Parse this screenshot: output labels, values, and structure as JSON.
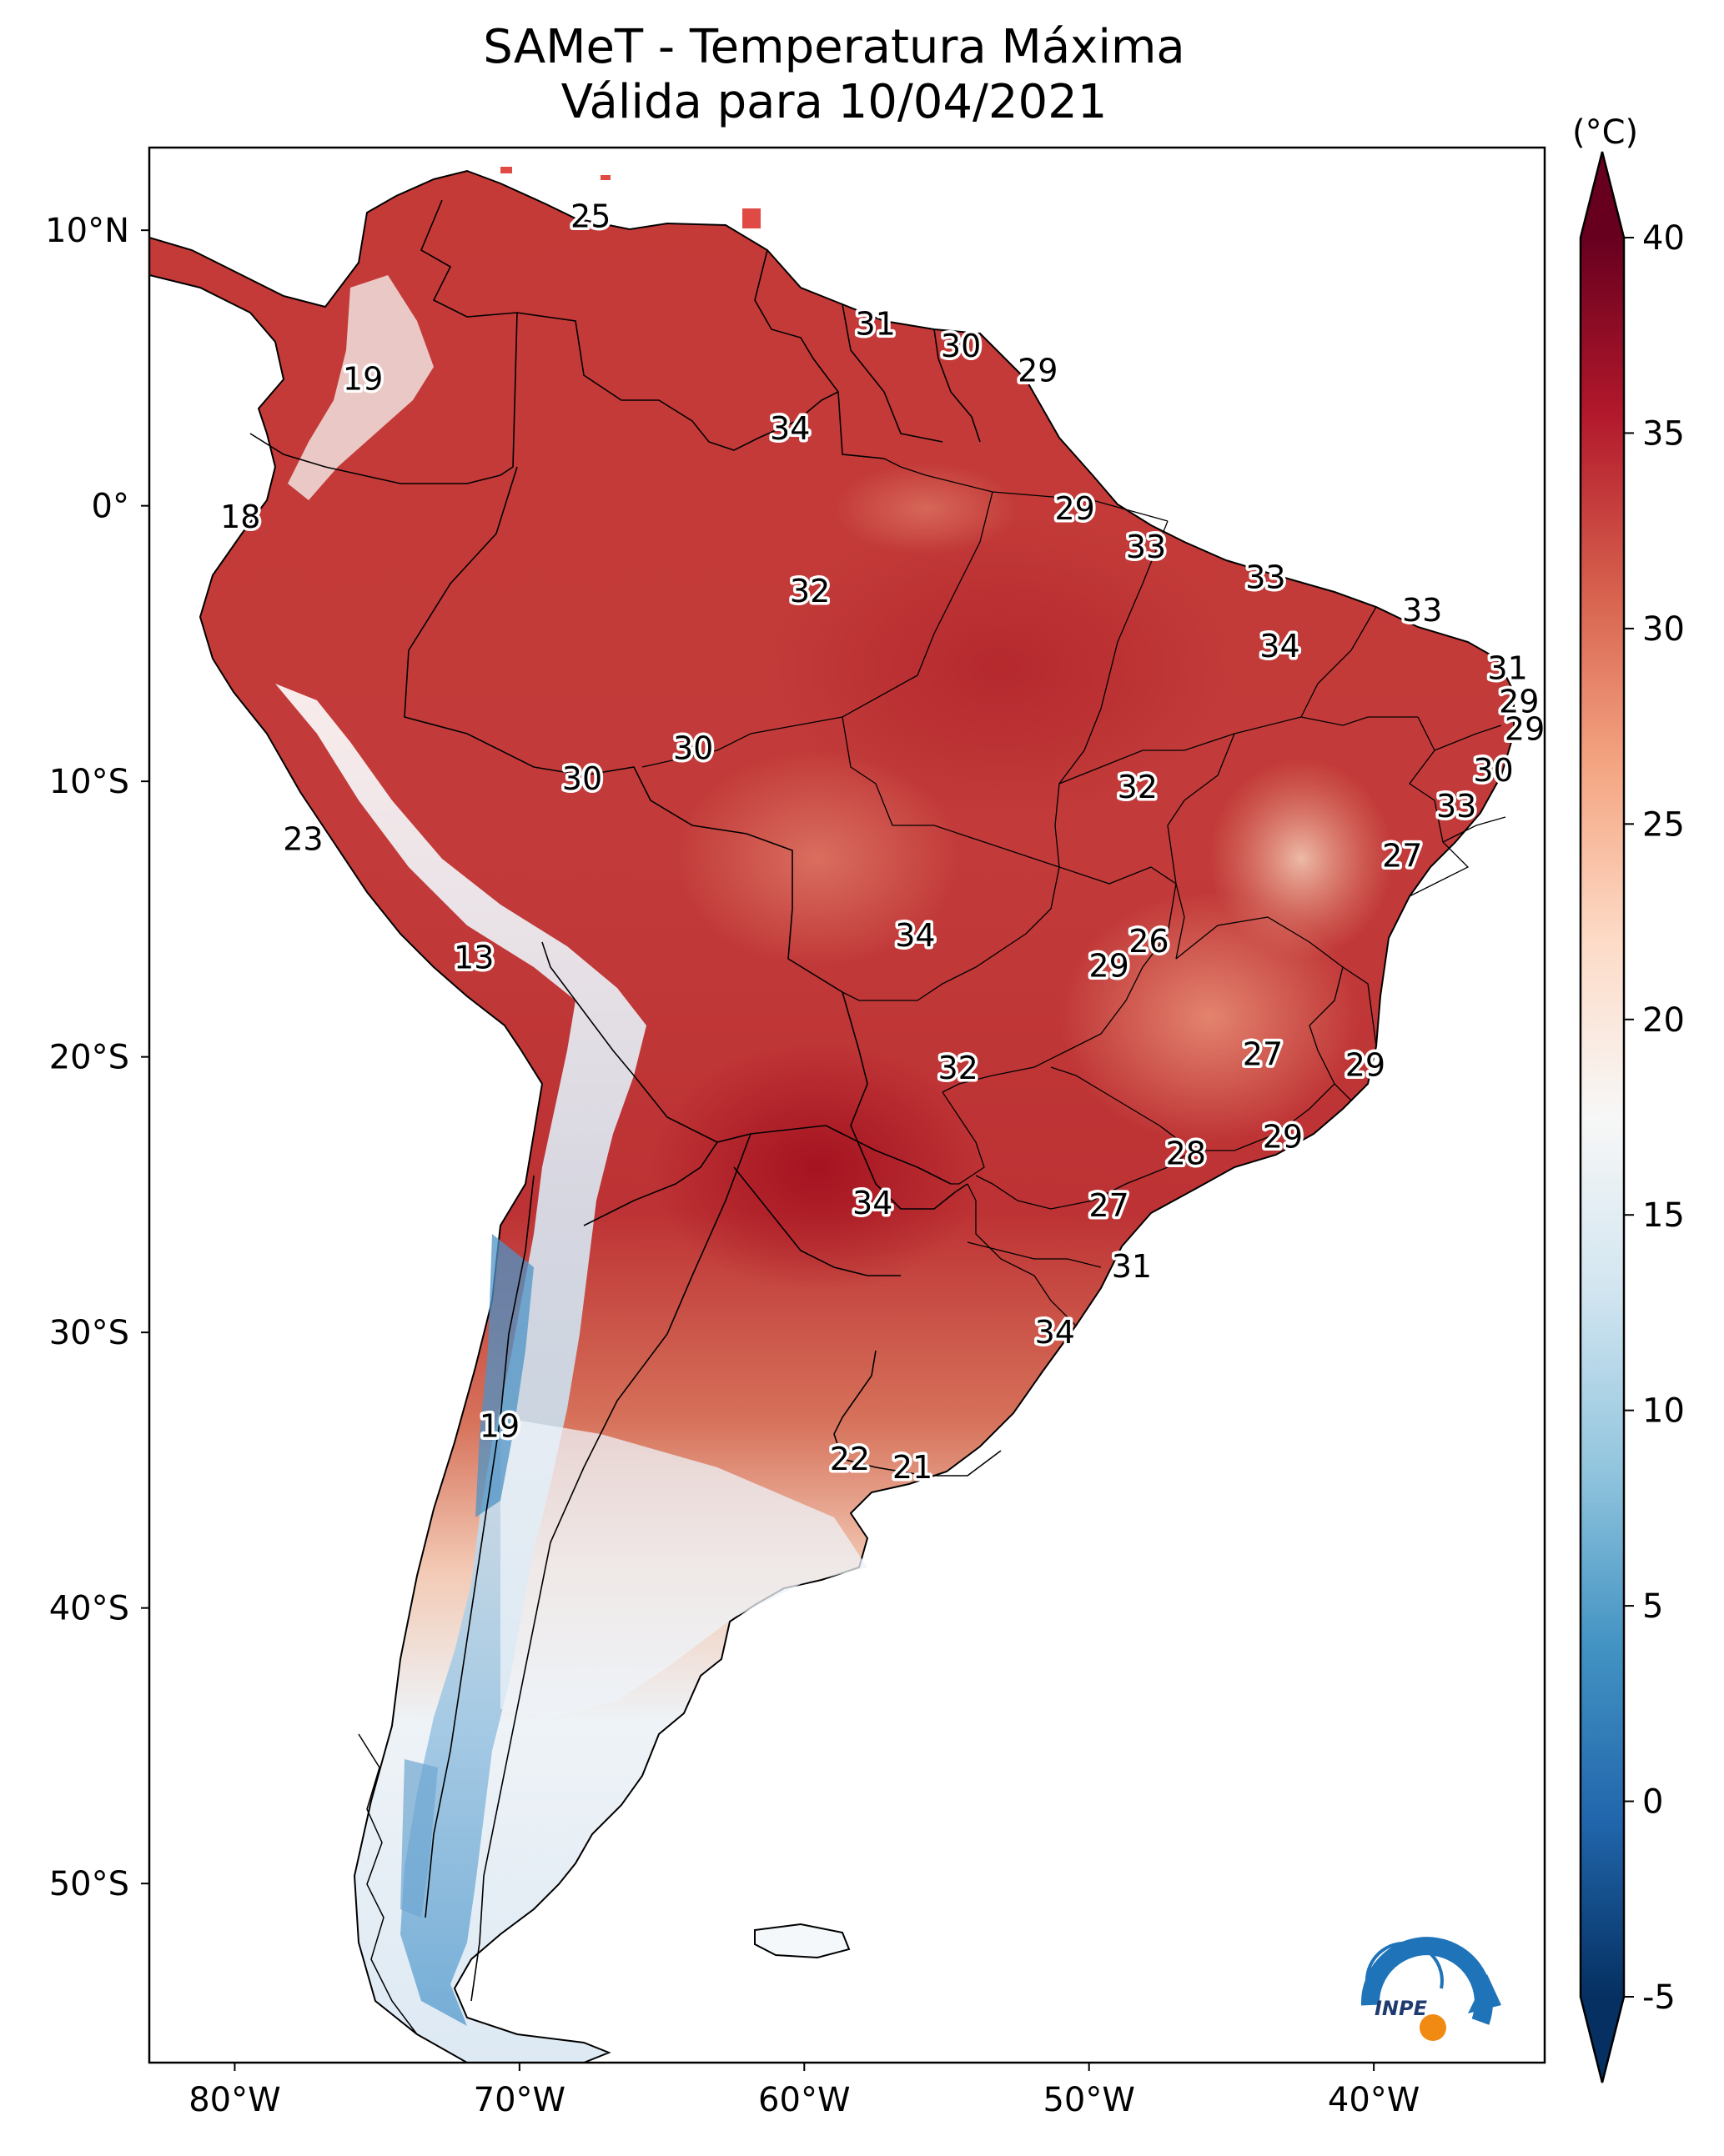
{
  "title": "SAMeT - Temperatura Máxima",
  "subtitle": "Válida para 10/04/2021",
  "logo_text": "INPE",
  "chart_data": {
    "type": "heatmap",
    "title": "SAMeT - Temperatura Máxima",
    "subtitle": "Válida para 10/04/2021",
    "lon_range": [
      -83,
      -34
    ],
    "lat_range": [
      -56.5,
      13
    ],
    "x_ticks": [
      {
        "lon": -80,
        "label": "80°W"
      },
      {
        "lon": -70,
        "label": "70°W"
      },
      {
        "lon": -60,
        "label": "60°W"
      },
      {
        "lon": -50,
        "label": "50°W"
      },
      {
        "lon": -40,
        "label": "40°W"
      }
    ],
    "y_ticks": [
      {
        "lat": 10,
        "label": "10°N"
      },
      {
        "lat": 0,
        "label": "0°"
      },
      {
        "lat": -10,
        "label": "10°S"
      },
      {
        "lat": -20,
        "label": "20°S"
      },
      {
        "lat": -30,
        "label": "30°S"
      },
      {
        "lat": -40,
        "label": "40°S"
      },
      {
        "lat": -50,
        "label": "50°S"
      }
    ],
    "colorbar": {
      "unit": "(°C)",
      "min": -5,
      "max": 40,
      "ticks": [
        {
          "value": 40,
          "label": "40"
        },
        {
          "value": 35,
          "label": "35"
        },
        {
          "value": 30,
          "label": "30"
        },
        {
          "value": 25,
          "label": "25"
        },
        {
          "value": 20,
          "label": "20"
        },
        {
          "value": 15,
          "label": "15"
        },
        {
          "value": 10,
          "label": "10"
        },
        {
          "value": 5,
          "label": "5"
        },
        {
          "value": 0,
          "label": "0"
        },
        {
          "value": -5,
          "label": "-5"
        }
      ],
      "colors": [
        "#053061",
        "#2166ac",
        "#4393c3",
        "#92c5de",
        "#d1e5f0",
        "#f7f7f7",
        "#fddbc7",
        "#f4a582",
        "#d6604d",
        "#b2182b",
        "#67001f"
      ]
    },
    "station_values": [
      {
        "lon": -67.5,
        "lat": 10.5,
        "text": "25"
      },
      {
        "lon": -75.5,
        "lat": 4.6,
        "text": "19"
      },
      {
        "lon": -57.5,
        "lat": 6.6,
        "text": "31"
      },
      {
        "lon": -54.5,
        "lat": 5.8,
        "text": "30"
      },
      {
        "lon": -51.8,
        "lat": 4.9,
        "text": "29"
      },
      {
        "lon": -60.5,
        "lat": 2.8,
        "text": "34"
      },
      {
        "lon": -79.8,
        "lat": -0.4,
        "text": "18"
      },
      {
        "lon": -50.5,
        "lat": -0.1,
        "text": "29"
      },
      {
        "lon": -48,
        "lat": -1.5,
        "text": "33"
      },
      {
        "lon": -43.8,
        "lat": -2.6,
        "text": "33"
      },
      {
        "lon": -38.3,
        "lat": -3.8,
        "text": "33"
      },
      {
        "lon": -59.8,
        "lat": -3.1,
        "text": "32"
      },
      {
        "lon": -43.3,
        "lat": -5.1,
        "text": "34"
      },
      {
        "lon": -35.3,
        "lat": -5.9,
        "text": "31"
      },
      {
        "lon": -34.9,
        "lat": -7.1,
        "text": "29"
      },
      {
        "lon": -34.7,
        "lat": -8.1,
        "text": "29"
      },
      {
        "lon": -35.8,
        "lat": -9.6,
        "text": "30"
      },
      {
        "lon": -37.1,
        "lat": -10.9,
        "text": "33"
      },
      {
        "lon": -67.8,
        "lat": -9.9,
        "text": "30"
      },
      {
        "lon": -63.9,
        "lat": -8.8,
        "text": "30"
      },
      {
        "lon": -48.3,
        "lat": -10.2,
        "text": "32"
      },
      {
        "lon": -39,
        "lat": -12.7,
        "text": "27"
      },
      {
        "lon": -77.6,
        "lat": -12.1,
        "text": "23"
      },
      {
        "lon": -71.6,
        "lat": -16.4,
        "text": "13"
      },
      {
        "lon": -56.1,
        "lat": -15.6,
        "text": "34"
      },
      {
        "lon": -47.9,
        "lat": -15.8,
        "text": "26"
      },
      {
        "lon": -49.3,
        "lat": -16.7,
        "text": "29"
      },
      {
        "lon": -43.9,
        "lat": -19.9,
        "text": "27"
      },
      {
        "lon": -40.3,
        "lat": -20.3,
        "text": "29"
      },
      {
        "lon": -54.6,
        "lat": -20.4,
        "text": "32"
      },
      {
        "lon": -43.2,
        "lat": -22.9,
        "text": "29"
      },
      {
        "lon": -46.6,
        "lat": -23.5,
        "text": "28"
      },
      {
        "lon": -57.6,
        "lat": -25.3,
        "text": "34"
      },
      {
        "lon": -49.3,
        "lat": -25.4,
        "text": "27"
      },
      {
        "lon": -48.5,
        "lat": -27.6,
        "text": "31"
      },
      {
        "lon": -51.2,
        "lat": -30.0,
        "text": "34"
      },
      {
        "lon": -70.7,
        "lat": -33.4,
        "text": "19"
      },
      {
        "lon": -58.4,
        "lat": -34.6,
        "text": "22"
      },
      {
        "lon": -56.2,
        "lat": -34.9,
        "text": "21"
      }
    ]
  }
}
